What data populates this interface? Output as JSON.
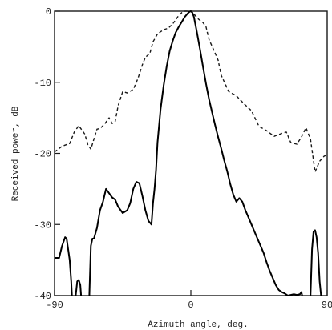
{
  "chart_data": {
    "type": "line",
    "title": "",
    "xlabel": "Azimuth angle, deg.",
    "ylabel": "Received power, dB",
    "xlim": [
      -90,
      90
    ],
    "ylim": [
      -40,
      0
    ],
    "xticks": [
      "-90",
      "0",
      "90"
    ],
    "yticks": [
      "0",
      "-10",
      "-20",
      "-30",
      "-40"
    ],
    "xtick_values": [
      -90,
      0,
      90
    ],
    "ytick_values": [
      0,
      -10,
      -20,
      -30,
      -40
    ],
    "grid": false,
    "legend": "none",
    "series": [
      {
        "style": "dashed",
        "color": "#1a1a1a",
        "x": [
          -90,
          -85,
          -80,
          -77,
          -74,
          -70,
          -68,
          -66,
          -64,
          -62,
          -60,
          -57,
          -54,
          -52,
          -50,
          -48,
          -45,
          -42,
          -38,
          -35,
          -32,
          -30,
          -27,
          -25,
          -22,
          -20,
          -18,
          -15,
          -12,
          -10,
          -8,
          -6,
          -4,
          -2,
          0,
          2,
          5,
          8,
          10,
          12,
          15,
          18,
          20,
          25,
          30,
          35,
          40,
          45,
          50,
          55,
          60,
          63,
          66,
          70,
          73,
          76,
          79,
          82,
          85,
          88,
          90
        ],
        "y": [
          -19.8,
          -19.0,
          -18.6,
          -17.0,
          -16.1,
          -17.3,
          -18.8,
          -19.4,
          -18.0,
          -16.6,
          -16.5,
          -15.9,
          -15.0,
          -15.8,
          -15.5,
          -13.3,
          -11.3,
          -11.5,
          -11.0,
          -9.5,
          -7.5,
          -6.5,
          -5.9,
          -4.3,
          -3.2,
          -2.9,
          -2.6,
          -2.4,
          -1.8,
          -1.2,
          -0.6,
          -0.2,
          0.0,
          0.0,
          0.0,
          -0.4,
          -1.1,
          -1.6,
          -2.2,
          -4.0,
          -5.4,
          -6.9,
          -9.0,
          -11.3,
          -11.9,
          -13.0,
          -14.0,
          -16.2,
          -16.8,
          -17.6,
          -17.2,
          -17.0,
          -18.5,
          -18.7,
          -17.7,
          -16.4,
          -18.0,
          -22.6,
          -21.1,
          -20.4,
          -20.2
        ]
      },
      {
        "style": "solid",
        "color": "#000000",
        "segments": [
          {
            "x": [
              -90,
              -87,
              -85,
              -83,
              -82,
              -81,
              -80,
              -79,
              -78.5
            ],
            "y": [
              -34.7,
              -34.7,
              -33.0,
              -31.8,
              -32.0,
              -33.5,
              -35.0,
              -38.0,
              -40.0
            ]
          },
          {
            "x": [
              -76,
              -75,
              -74,
              -73,
              -72.5
            ],
            "y": [
              -40.0,
              -38.0,
              -37.8,
              -38.5,
              -40.0
            ]
          },
          {
            "x": [
              -67,
              -66,
              -65,
              -64,
              -62,
              -60,
              -58,
              -56,
              -54,
              -52,
              -50,
              -48,
              -45,
              -42,
              -40,
              -38,
              -36,
              -34,
              -32,
              -30,
              -28,
              -26,
              -25,
              -24,
              -23,
              -22,
              -20,
              -18,
              -16,
              -14,
              -12,
              -10,
              -8,
              -6,
              -4,
              -2,
              -1,
              0,
              1,
              2,
              4,
              6,
              8,
              10,
              12,
              14,
              16,
              18,
              20,
              22,
              24,
              26,
              28,
              30,
              32,
              34,
              36,
              38,
              40,
              42,
              44,
              46,
              48,
              50,
              52,
              54,
              56,
              58,
              60,
              62,
              64,
              66,
              68,
              70,
              72,
              73,
              73.5
            ],
            "y": [
              -40.0,
              -33.0,
              -32.0,
              -32.0,
              -30.5,
              -28.0,
              -26.8,
              -25.0,
              -25.6,
              -26.2,
              -26.5,
              -27.5,
              -28.4,
              -28.0,
              -27.0,
              -25.0,
              -24.0,
              -24.2,
              -26.0,
              -28.0,
              -29.5,
              -30.0,
              -27.0,
              -25.0,
              -22.3,
              -18.5,
              -13.8,
              -10.5,
              -7.8,
              -5.6,
              -4.2,
              -3.0,
              -2.2,
              -1.5,
              -0.8,
              -0.3,
              -0.1,
              0.0,
              -0.2,
              -0.8,
              -3.0,
              -5.3,
              -7.8,
              -10.2,
              -12.4,
              -14.2,
              -16.0,
              -17.7,
              -19.3,
              -21.0,
              -22.5,
              -24.3,
              -25.8,
              -26.8,
              -26.3,
              -26.8,
              -28.0,
              -29.0,
              -30.0,
              -31.0,
              -32.0,
              -33.0,
              -34.0,
              -35.3,
              -36.5,
              -37.5,
              -38.5,
              -39.2,
              -39.5,
              -39.7,
              -40.0,
              -39.9,
              -39.8,
              -39.9,
              -39.8,
              -39.5,
              -40.0
            ]
          },
          {
            "x": [
              79,
              80,
              81,
              82,
              83,
              84,
              85,
              86
            ],
            "y": [
              -40.0,
              -33.5,
              -31.0,
              -30.8,
              -31.8,
              -34.0,
              -38.0,
              -40.0
            ]
          }
        ]
      }
    ]
  }
}
